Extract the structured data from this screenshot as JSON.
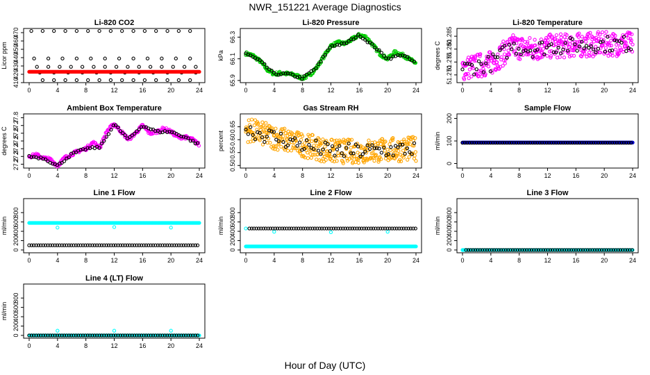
{
  "page": {
    "title": "NWR_151221  Average Diagnostics",
    "xlabel": "Hour of Day (UTC)"
  },
  "colors": {
    "black": "#000000",
    "red": "#ff0000",
    "green": "#00cc00",
    "magenta": "#ff00ff",
    "orange": "#ffa500",
    "blue": "#0000cc",
    "cyan": "#00ffff"
  },
  "chart_data": [
    {
      "type": "scatter",
      "title": "Li-820 CO2",
      "ylabel": "Licor ppm",
      "xlim": [
        0,
        24
      ],
      "ylim": [
        410,
        475
      ],
      "xticks": [
        "0",
        "4",
        "8",
        "12",
        "16",
        "20",
        "24"
      ],
      "yticks": [
        "410",
        "420",
        "430",
        "440",
        "450",
        "460",
        "470"
      ],
      "series": [
        {
          "color": "black",
          "pattern": "bands",
          "levels": [
            472,
            439,
            429,
            422,
            413
          ]
        },
        {
          "color": "red",
          "pattern": "flat",
          "value": 423
        }
      ]
    },
    {
      "type": "scatter",
      "title": "Li-820 Pressure",
      "ylabel": "kPa",
      "xlim": [
        0,
        24
      ],
      "ylim": [
        65.88,
        66.38
      ],
      "xticks": [
        "0",
        "4",
        "8",
        "12",
        "16",
        "20",
        "24"
      ],
      "yticks": [
        "65.9",
        "66.1",
        "66.3"
      ],
      "series": [
        {
          "color": "green",
          "pattern": "curve",
          "profile": [
            [
              0,
              66.15
            ],
            [
              1,
              66.13
            ],
            [
              2,
              66.08
            ],
            [
              3,
              66.0
            ],
            [
              4,
              65.96
            ],
            [
              5,
              65.97
            ],
            [
              6,
              65.96
            ],
            [
              7,
              65.95
            ],
            [
              8,
              65.92
            ],
            [
              9,
              65.95
            ],
            [
              10,
              66.02
            ],
            [
              11,
              66.12
            ],
            [
              12,
              66.22
            ],
            [
              13,
              66.25
            ],
            [
              14,
              66.24
            ],
            [
              15,
              66.28
            ],
            [
              16,
              66.32
            ],
            [
              17,
              66.3
            ],
            [
              18,
              66.22
            ],
            [
              19,
              66.14
            ],
            [
              20,
              66.1
            ],
            [
              21,
              66.16
            ],
            [
              22,
              66.14
            ],
            [
              23,
              66.1
            ],
            [
              24,
              66.06
            ]
          ]
        },
        {
          "color": "black",
          "pattern": "curve",
          "profile": [
            [
              0,
              66.15
            ],
            [
              2,
              66.08
            ],
            [
              4,
              65.96
            ],
            [
              6,
              65.96
            ],
            [
              8,
              65.92
            ],
            [
              10,
              66.02
            ],
            [
              12,
              66.22
            ],
            [
              14,
              66.24
            ],
            [
              16,
              66.32
            ],
            [
              18,
              66.22
            ],
            [
              20,
              66.1
            ],
            [
              22,
              66.14
            ],
            [
              24,
              66.06
            ]
          ]
        }
      ]
    },
    {
      "type": "scatter",
      "title": "Li-820 Temperature",
      "ylabel": "degrees C",
      "xlim": [
        0,
        24
      ],
      "ylim": [
        51.267,
        51.288
      ],
      "xticks": [
        "0",
        "4",
        "8",
        "12",
        "16",
        "20",
        "24"
      ],
      "yticks": [
        "51.270",
        "51.275",
        "51.280",
        "51.285"
      ],
      "series": [
        {
          "color": "magenta",
          "pattern": "noisy",
          "profile": [
            [
              0,
              51.2725
            ],
            [
              4,
              51.2745
            ],
            [
              7,
              51.281
            ],
            [
              10,
              51.28
            ],
            [
              12,
              51.281
            ],
            [
              16,
              51.2815
            ],
            [
              20,
              51.282
            ],
            [
              24,
              51.282
            ]
          ]
        },
        {
          "color": "black",
          "pattern": "noisy",
          "profile": [
            [
              0,
              51.2725
            ],
            [
              4,
              51.2745
            ],
            [
              7,
              51.281
            ],
            [
              10,
              51.28
            ],
            [
              12,
              51.281
            ],
            [
              16,
              51.2815
            ],
            [
              20,
              51.282
            ],
            [
              24,
              51.282
            ]
          ]
        }
      ]
    },
    {
      "type": "scatter",
      "title": "Ambient Box Temperature",
      "ylabel": "degrees C",
      "xlim": [
        0,
        24
      ],
      "ylim": [
        27.15,
        27.85
      ],
      "xticks": [
        "0",
        "4",
        "8",
        "12",
        "16",
        "20",
        "24"
      ],
      "yticks": [
        "27.2",
        "27.3",
        "27.4",
        "27.5",
        "27.6",
        "27.7",
        "27.8"
      ],
      "series": [
        {
          "color": "magenta",
          "pattern": "curve",
          "profile": [
            [
              0,
              27.3
            ],
            [
              1,
              27.32
            ],
            [
              2,
              27.28
            ],
            [
              3,
              27.26
            ],
            [
              4,
              27.18
            ],
            [
              5,
              27.28
            ],
            [
              6,
              27.33
            ],
            [
              7,
              27.37
            ],
            [
              8,
              27.4
            ],
            [
              9,
              27.48
            ],
            [
              10,
              27.42
            ],
            [
              11,
              27.63
            ],
            [
              12,
              27.72
            ],
            [
              13,
              27.62
            ],
            [
              14,
              27.52
            ],
            [
              15,
              27.6
            ],
            [
              16,
              27.7
            ],
            [
              17,
              27.6
            ],
            [
              18,
              27.62
            ],
            [
              19,
              27.66
            ],
            [
              20,
              27.62
            ],
            [
              21,
              27.55
            ],
            [
              22,
              27.55
            ],
            [
              23,
              27.52
            ],
            [
              24,
              27.45
            ]
          ]
        },
        {
          "color": "black",
          "pattern": "curve",
          "profile": [
            [
              0,
              27.3
            ],
            [
              2,
              27.28
            ],
            [
              4,
              27.18
            ],
            [
              6,
              27.33
            ],
            [
              8,
              27.4
            ],
            [
              10,
              27.42
            ],
            [
              12,
              27.72
            ],
            [
              14,
              27.52
            ],
            [
              16,
              27.7
            ],
            [
              18,
              27.62
            ],
            [
              20,
              27.62
            ],
            [
              22,
              27.55
            ],
            [
              24,
              27.45
            ]
          ]
        }
      ]
    },
    {
      "type": "scatter",
      "title": "Gas Stream RH",
      "ylabel": "percent",
      "xlim": [
        0,
        24
      ],
      "ylim": [
        0.49,
        0.7
      ],
      "xticks": [
        "0",
        "4",
        "8",
        "12",
        "16",
        "20",
        "24"
      ],
      "yticks": [
        "0.50",
        "0.55",
        "0.60",
        "0.65"
      ],
      "series": [
        {
          "color": "orange",
          "pattern": "noisy",
          "profile": [
            [
              0,
              0.64
            ],
            [
              4,
              0.61
            ],
            [
              8,
              0.58
            ],
            [
              12,
              0.555
            ],
            [
              16,
              0.555
            ],
            [
              20,
              0.56
            ],
            [
              24,
              0.565
            ]
          ]
        },
        {
          "color": "black",
          "pattern": "noisy",
          "profile": [
            [
              0,
              0.64
            ],
            [
              4,
              0.61
            ],
            [
              8,
              0.58
            ],
            [
              12,
              0.555
            ],
            [
              16,
              0.555
            ],
            [
              20,
              0.56
            ],
            [
              24,
              0.565
            ]
          ]
        }
      ]
    },
    {
      "type": "scatter",
      "title": "Sample Flow",
      "ylabel": "ml/min",
      "xlim": [
        0,
        24
      ],
      "ylim": [
        -20,
        220
      ],
      "xticks": [
        "0",
        "4",
        "8",
        "12",
        "16",
        "20",
        "24"
      ],
      "yticks": [
        "0",
        "100",
        "200"
      ],
      "series": [
        {
          "color": "blue",
          "pattern": "flat",
          "value": 93
        },
        {
          "color": "black",
          "pattern": "flat",
          "value": 92
        }
      ]
    },
    {
      "type": "scatter",
      "title": "Line 1 Flow",
      "ylabel": "ml/min",
      "xlim": [
        0,
        24
      ],
      "ylim": [
        -60,
        1100
      ],
      "xticks": [
        "0",
        "4",
        "8",
        "12",
        "16",
        "20",
        "24"
      ],
      "yticks": [
        "0",
        "200",
        "400",
        "600",
        "800"
      ],
      "series": [
        {
          "color": "cyan",
          "pattern": "flat",
          "value": 580,
          "spikes": [
            [
              4,
              480
            ],
            [
              12,
              490
            ],
            [
              20,
              480
            ]
          ]
        },
        {
          "color": "black",
          "pattern": "flat",
          "value": 100
        }
      ]
    },
    {
      "type": "scatter",
      "title": "Line 2 Flow",
      "ylabel": "ml/min",
      "xlim": [
        0,
        24
      ],
      "ylim": [
        -60,
        1100
      ],
      "xticks": [
        "0",
        "4",
        "8",
        "12",
        "16",
        "20",
        "24"
      ],
      "yticks": [
        "0",
        "200",
        "400",
        "600",
        "800"
      ],
      "series": [
        {
          "color": "cyan",
          "pattern": "flat",
          "value": 75,
          "spikes": [
            [
              0,
              460
            ],
            [
              4,
              390
            ],
            [
              12,
              380
            ],
            [
              20,
              390
            ]
          ]
        },
        {
          "color": "black",
          "pattern": "flat",
          "value": 460,
          "start": 0.5
        }
      ]
    },
    {
      "type": "scatter",
      "title": "Line 3 Flow",
      "ylabel": "ml/min",
      "xlim": [
        0,
        24
      ],
      "ylim": [
        -60,
        1100
      ],
      "xticks": [
        "0",
        "4",
        "8",
        "12",
        "16",
        "20",
        "24"
      ],
      "yticks": [
        "0",
        "200",
        "400",
        "600",
        "800"
      ],
      "series": [
        {
          "color": "cyan",
          "pattern": "flat",
          "value": 0
        },
        {
          "color": "black",
          "pattern": "flat",
          "value": 0,
          "start": 0.5
        }
      ]
    },
    {
      "type": "scatter",
      "title": "Line 4 (LT) Flow",
      "ylabel": "ml/min",
      "xlim": [
        0,
        24
      ],
      "ylim": [
        -60,
        1100
      ],
      "xticks": [
        "0",
        "4",
        "8",
        "12",
        "16",
        "20",
        "24"
      ],
      "yticks": [
        "0",
        "200",
        "400",
        "600",
        "800"
      ],
      "series": [
        {
          "color": "cyan",
          "pattern": "flat",
          "value": 0,
          "spikes": [
            [
              4,
              100
            ],
            [
              12,
              100
            ],
            [
              20,
              100
            ]
          ]
        },
        {
          "color": "black",
          "pattern": "flat",
          "value": 0
        }
      ]
    }
  ]
}
